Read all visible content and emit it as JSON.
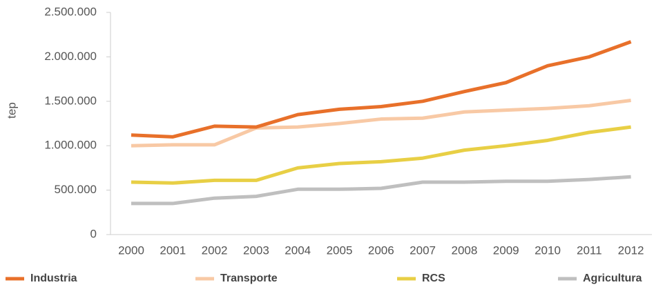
{
  "chart_data": {
    "type": "line",
    "y_label": "tep",
    "categories": [
      "2000",
      "2001",
      "2002",
      "2003",
      "2004",
      "2005",
      "2006",
      "2007",
      "2008",
      "2009",
      "2010",
      "2011",
      "2012"
    ],
    "series": [
      {
        "name": "Industria",
        "color": "#e8702a",
        "values": [
          1120000,
          1100000,
          1220000,
          1210000,
          1350000,
          1410000,
          1440000,
          1500000,
          1610000,
          1710000,
          1900000,
          2000000,
          2170000
        ]
      },
      {
        "name": "Transporte",
        "color": "#f8c9a5",
        "values": [
          1000000,
          1010000,
          1010000,
          1200000,
          1210000,
          1250000,
          1300000,
          1310000,
          1380000,
          1400000,
          1420000,
          1450000,
          1510000
        ]
      },
      {
        "name": "RCS",
        "color": "#e8cf45",
        "values": [
          590000,
          580000,
          610000,
          610000,
          750000,
          800000,
          820000,
          860000,
          950000,
          1000000,
          1060000,
          1150000,
          1210000
        ]
      },
      {
        "name": "Agricultura",
        "color": "#bfbfbf",
        "values": [
          350000,
          350000,
          410000,
          430000,
          510000,
          510000,
          520000,
          590000,
          590000,
          600000,
          600000,
          620000,
          650000
        ]
      }
    ],
    "ylim": [
      0,
      2500000
    ],
    "yticks": [
      0,
      {
        "value": 500000,
        "label": "500.000"
      },
      {
        "value": 1000000,
        "label": "1.000.000"
      },
      {
        "value": 1500000,
        "label": "1.500.000"
      },
      {
        "value": 2000000,
        "label": "2.000.000"
      },
      {
        "value": 2500000,
        "label": "2.500.000"
      }
    ],
    "grid": false,
    "legend": "bottom"
  }
}
